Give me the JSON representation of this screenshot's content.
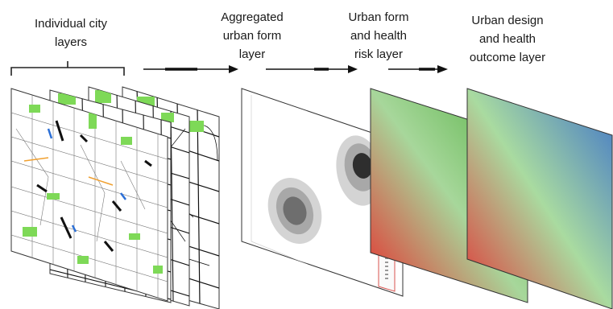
{
  "labels": {
    "individual_city": [
      "Individual city",
      "layers"
    ],
    "aggregated": [
      "Aggregated",
      "urban form",
      "layer"
    ],
    "risk": [
      "Urban form",
      "and health",
      "risk layer"
    ],
    "outcome": [
      "Urban design",
      "and health",
      "outcome layer"
    ]
  },
  "colors": {
    "map_green": "#7ed957",
    "map_blue": "#2b6fd6",
    "map_orange": "#f0a030",
    "map_line": "#111111",
    "risk_gradient": [
      "#e82a2a",
      "#a7d79b",
      "#4fae3c"
    ],
    "outcome_gradient": [
      "#e23535",
      "#a9dba0",
      "#3f74c9"
    ],
    "density_levels": [
      "#d4d4d4",
      "#a8a8a8",
      "#6e6e6e",
      "#2e2e2e"
    ],
    "frame_red": "#d9534f"
  },
  "icons": [
    "bracket-icon",
    "arrow-right-icon"
  ]
}
